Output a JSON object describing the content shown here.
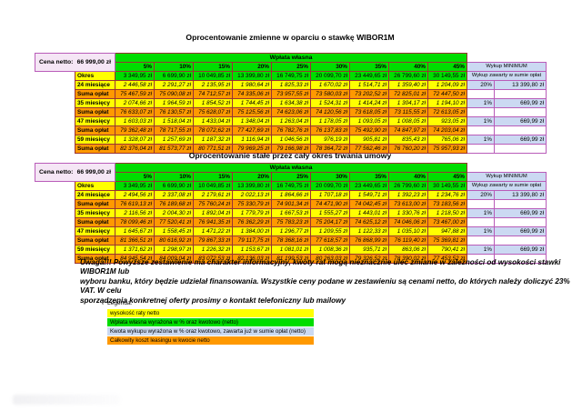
{
  "page": {
    "legend_title": "Legenda:",
    "disclaimer_lines": [
      "Uwaga!!! Powyższe zestawienie ma charakter informacyjny, kwoty rat mogą nieznacznie ulec zmianie w zależności od wysokości stawki WIBOR1M lub",
      "wyboru banku, który będzie udzielał finansowania. Wszystkie ceny podane w zestawieniu są cenami netto, do których należy doliczyć 23% VAT. W celu",
      "sporządzenia konkretnej oferty prosimy o kontakt telefoniczny lub mailowy"
    ]
  },
  "colors": {
    "green": "#00dd00",
    "yellow": "#ffff00",
    "orange": "#ff9900",
    "lavender": "#f5e6f5",
    "lightblue": "#cbd9f2",
    "grid": "#993333",
    "wykborder": "#b95cb9"
  },
  "tables": [
    {
      "title": "Oprocentowanie zmienne w oparciu o stawkę WIBOR1M",
      "cena_netto_label": "Cena netto:",
      "cena_netto_value": "66 999,00 zł",
      "wplata_header": "Wpłata własna",
      "wykup_header": "Wykup MINIMUM",
      "wykup_subheader": "Wykup zawarty w sumie opłat",
      "percent_headers": [
        "5%",
        "10%",
        "15%",
        "20%",
        "25%",
        "30%",
        "35%",
        "40%",
        "45%"
      ],
      "rows": [
        {
          "label": "Okres",
          "style": "green",
          "values": [
            "3 349,95 zł",
            "6 699,90 zł",
            "10 049,85 zł",
            "13 399,80 zł",
            "16 749,75 zł",
            "20 099,70 zł",
            "23 449,65 zł",
            "26 799,60 zł",
            "30 149,55 zł"
          ],
          "wykup": null
        },
        {
          "label": "24 miesiące",
          "style": "yellow",
          "values": [
            "2 446,58 zł",
            "2 291,27 zł",
            "2 135,95 zł",
            "1 980,64 zł",
            "1 825,33 zł",
            "1 670,02 zł",
            "1 514,71 zł",
            "1 359,40 zł",
            "1 204,09 zł"
          ],
          "wykup": [
            "20%",
            "13 399,80 zł"
          ]
        },
        {
          "label": "Suma opłat",
          "style": "orange",
          "values": [
            "75 467,59 zł",
            "75 090,08 zł",
            "74 712,57 zł",
            "74 335,06 zł",
            "73 957,55 zł",
            "73 580,03 zł",
            "73 202,52 zł",
            "72 825,01 zł",
            "72 447,50 zł"
          ],
          "wykup": null
        },
        {
          "label": "35 miesięcy",
          "style": "yellow",
          "values": [
            "2 074,66 zł",
            "1 964,59 zł",
            "1 854,52 zł",
            "1 744,45 zł",
            "1 634,38 zł",
            "1 524,31 zł",
            "1 414,24 zł",
            "1 304,17 zł",
            "1 194,10 zł"
          ],
          "wykup": [
            "1%",
            "669,99 zł"
          ]
        },
        {
          "label": "Suma opłat",
          "style": "orange",
          "values": [
            "76 633,07 zł",
            "76 130,57 zł",
            "75 628,07 zł",
            "75 125,56 zł",
            "74 623,06 zł",
            "74 120,56 zł",
            "73 618,05 zł",
            "73 115,55 zł",
            "72 613,05 zł"
          ],
          "wykup": null
        },
        {
          "label": "47 miesięcy",
          "style": "yellow",
          "values": [
            "1 603,03 zł",
            "1 518,04 zł",
            "1 433,04 zł",
            "1 348,04 zł",
            "1 263,04 zł",
            "1 178,05 zł",
            "1 093,05 zł",
            "1 008,05 zł",
            "923,05 zł"
          ],
          "wykup": [
            "1%",
            "669,99 zł"
          ]
        },
        {
          "label": "Suma opłat",
          "style": "orange",
          "values": [
            "79 362,48 zł",
            "78 717,55 zł",
            "78 072,62 zł",
            "77 427,69 zł",
            "76 782,76 zł",
            "76 137,83 zł",
            "75 492,90 zł",
            "74 847,97 zł",
            "74 203,04 zł"
          ],
          "wykup": null
        },
        {
          "label": "59 miesięcy",
          "style": "yellow",
          "values": [
            "1 328,07 zł",
            "1 257,69 zł",
            "1 187,32 zł",
            "1 116,94 zł",
            "1 046,56 zł",
            "976,19 zł",
            "905,81 zł",
            "835,43 zł",
            "765,06 zł"
          ],
          "wykup": [
            "1%",
            "669,99 zł"
          ]
        },
        {
          "label": "Suma opłat",
          "style": "orange",
          "values": [
            "82 376,04 zł",
            "81 573,77 zł",
            "80 771,51 zł",
            "79 969,25 zł",
            "79 166,98 zł",
            "78 364,72 zł",
            "77 562,46 zł",
            "76 760,20 zł",
            "75 957,93 zł"
          ],
          "wykup": null
        }
      ]
    },
    {
      "title": "Oprocentowanie stałe przez cały okres trwania umowy",
      "cena_netto_label": "Cena netto:",
      "cena_netto_value": "66 999,00 zł",
      "wplata_header": "Wpłata własna",
      "wykup_header": "Wykup MINIMUM",
      "wykup_subheader": "Wykup zawarty w sumie opłat",
      "percent_headers": [
        "5%",
        "10%",
        "15%",
        "20%",
        "25%",
        "30%",
        "35%",
        "40%",
        "45%"
      ],
      "rows": [
        {
          "label": "Okres",
          "style": "green",
          "values": [
            "3 349,95 zł",
            "6 699,90 zł",
            "10 049,85 zł",
            "13 399,80 zł",
            "16 749,75 zł",
            "20 099,70 zł",
            "23 449,65 zł",
            "26 799,60 zł",
            "30 149,55 zł"
          ],
          "wykup": null
        },
        {
          "label": "24 miesiące",
          "style": "yellow",
          "values": [
            "2 494,56 zł",
            "2 337,08 zł",
            "2 179,61 zł",
            "2 022,13 zł",
            "1 864,66 zł",
            "1 707,18 zł",
            "1 549,71 zł",
            "1 392,23 zł",
            "1 234,76 zł"
          ],
          "wykup": [
            "20%",
            "13 399,80 zł"
          ]
        },
        {
          "label": "Suma opłat",
          "style": "orange",
          "values": [
            "76 619,13 zł",
            "76 189,68 zł",
            "75 760,24 zł",
            "75 330,79 zł",
            "74 901,34 zł",
            "74 471,90 zł",
            "74 042,45 zł",
            "73 613,00 zł",
            "73 183,56 zł"
          ],
          "wykup": null
        },
        {
          "label": "35 miesięcy",
          "style": "yellow",
          "values": [
            "2 116,56 zł",
            "2 004,30 zł",
            "1 892,04 zł",
            "1 779,79 zł",
            "1 667,53 zł",
            "1 555,27 zł",
            "1 443,01 zł",
            "1 330,76 zł",
            "1 218,50 zł"
          ],
          "wykup": [
            "1%",
            "669,99 zł"
          ]
        },
        {
          "label": "Suma opłat",
          "style": "orange",
          "values": [
            "78 099,46 zł",
            "77 520,41 zł",
            "76 941,35 zł",
            "76 362,29 zł",
            "75 783,23 zł",
            "75 204,17 zł",
            "74 625,12 zł",
            "74 046,06 zł",
            "73 467,00 zł"
          ],
          "wykup": null
        },
        {
          "label": "47 miesięcy",
          "style": "yellow",
          "values": [
            "1 645,67 zł",
            "1 558,45 zł",
            "1 471,22 zł",
            "1 384,00 zł",
            "1 296,77 zł",
            "1 209,55 zł",
            "1 122,33 zł",
            "1 035,10 zł",
            "947,88 zł"
          ],
          "wykup": [
            "1%",
            "669,99 zł"
          ]
        },
        {
          "label": "Suma opłat",
          "style": "orange",
          "values": [
            "81 366,51 zł",
            "80 616,92 zł",
            "79 867,33 zł",
            "79 117,75 zł",
            "78 368,16 zł",
            "77 618,57 zł",
            "76 868,99 zł",
            "76 119,40 zł",
            "75 369,81 zł"
          ],
          "wykup": null
        },
        {
          "label": "59 miesięcy",
          "style": "yellow",
          "values": [
            "1 371,62 zł",
            "1 298,97 zł",
            "1 226,32 zł",
            "1 153,67 zł",
            "1 081,01 zł",
            "1 008,36 zł",
            "935,71 zł",
            "863,06 zł",
            "790,41 zł"
          ],
          "wykup": [
            "1%",
            "669,99 zł"
          ]
        },
        {
          "label": "Suma opłat",
          "style": "orange",
          "values": [
            "84 945,54 zł",
            "84 009,04 zł",
            "83 072,53 zł",
            "82 136,03 zł",
            "81 199,53 zł",
            "80 263,03 zł",
            "79 326,52 zł",
            "78 390,02 zł",
            "77 453,52 zł"
          ],
          "wykup": null
        }
      ]
    }
  ],
  "legend": {
    "items": [
      {
        "label": "wysokość raty netto",
        "color": "#ffff00"
      },
      {
        "label": "Wpłata własna wyrażona w % oraz kwotowo (netto)",
        "color": "#00dd00"
      },
      {
        "label": "Kwota wykupu wyrażona w % oraz kwotowo, zawarta już w sumie opłat (netto)",
        "color": "#cbd9f2"
      },
      {
        "label": "Całkowity koszt leasingu w kwocie netto",
        "color": "#ff9900"
      }
    ]
  }
}
